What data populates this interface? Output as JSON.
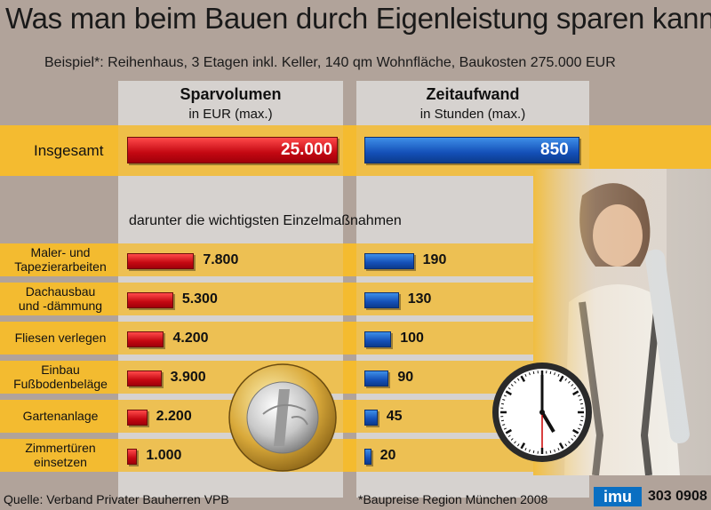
{
  "title": "Was man beim Bauen durch Eigenleistung sparen kann",
  "subtitle": "Beispiel*: Reihenhaus, 3 Etagen inkl. Keller, 140 qm Wohnfläche, Baukosten 275.000 EUR",
  "columns": {
    "left": {
      "heading": "Sparvolumen",
      "sub": "in EUR (max.)"
    },
    "right": {
      "heading": "Zeitaufwand",
      "sub": "in Stunden (max.)"
    }
  },
  "section_label": "darunter die wichtigsten Einzelmaßnahmen",
  "footer": {
    "source": "Quelle: Verband Privater Bauherren VPB",
    "note": "*Baupreise Region München 2008",
    "logo": "imu",
    "code": "303 0908"
  },
  "colors": {
    "red": "#c40812",
    "blue": "#1450b8",
    "band": "#f3bb30",
    "panel": "#d6d2cf",
    "background": "#b1a39a"
  },
  "icons": [
    "euro-coin-icon",
    "wall-clock-icon"
  ],
  "chart_data": {
    "type": "bar",
    "title": "Was man beim Bauen durch Eigenleistung sparen kann",
    "subtitle": "Beispiel*: Reihenhaus, 3 Etagen inkl. Keller, 140 qm Wohnfläche, Baukosten 275.000 EUR",
    "total": {
      "label": "Insgesamt",
      "savings": 25000,
      "savings_label": "25.000",
      "hours": 850,
      "hours_label": "850"
    },
    "categories": [
      "Maler- und Tapezierarbeiten",
      "Dachausbau und -dämmung",
      "Fliesen verlegen",
      "Einbau Fußbodenbeläge",
      "Gartenanlage",
      "Zimmertüren einsetzen"
    ],
    "series": [
      {
        "name": "Sparvolumen",
        "values": [
          7800,
          5300,
          4200,
          3900,
          2200,
          1000
        ],
        "labels": [
          "7.800",
          "5.300",
          "4.200",
          "3.900",
          "2.200",
          "1.000"
        ]
      },
      {
        "name": "Zeitaufwand",
        "values": [
          190,
          130,
          100,
          90,
          45,
          20
        ],
        "labels": [
          "190",
          "130",
          "100",
          "90",
          "45",
          "20"
        ]
      }
    ]
  }
}
